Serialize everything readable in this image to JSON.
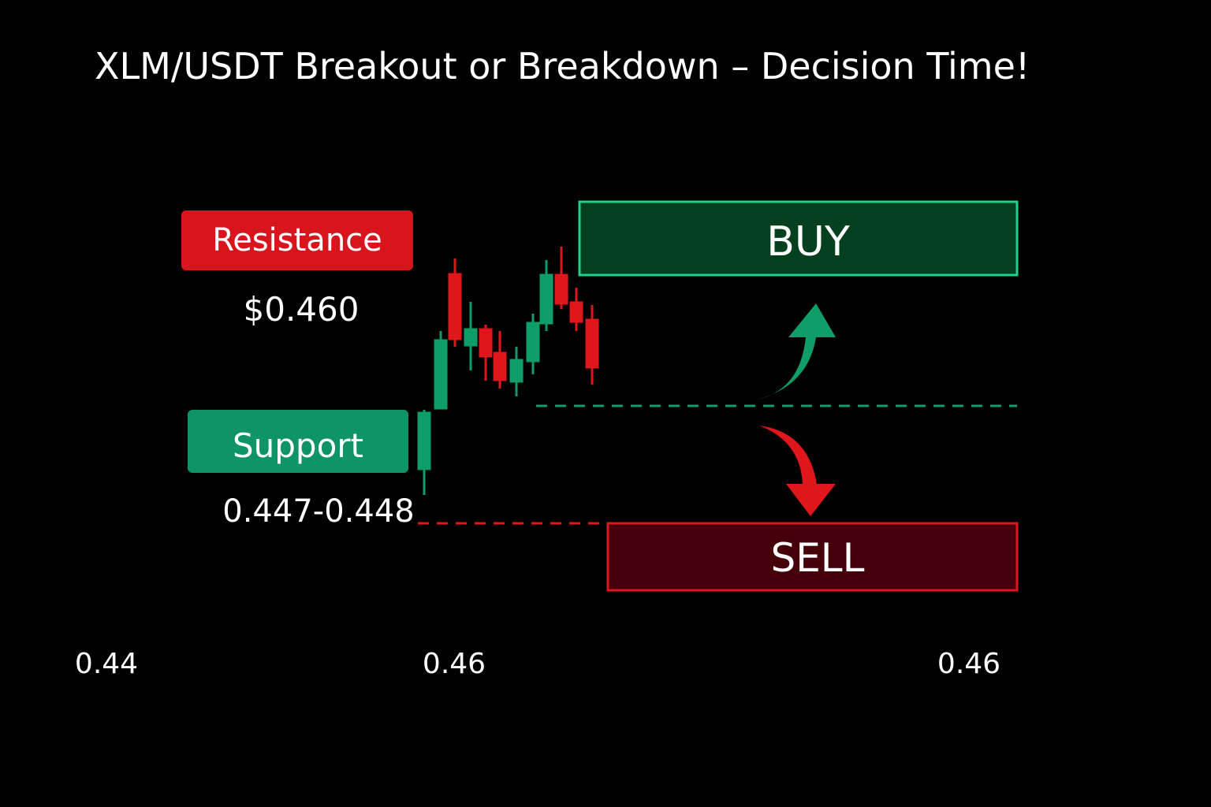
{
  "title": "XLM/USDT Breakout or Breakdown – Decision Time!",
  "resistance": {
    "label": "Resistance",
    "price": "$0.460"
  },
  "support": {
    "label": "Support",
    "price": "0.447-0.448"
  },
  "buy": "BUY",
  "sell": "SELL",
  "axis_labels": [
    "0.44",
    "0.46",
    "0.46"
  ]
}
